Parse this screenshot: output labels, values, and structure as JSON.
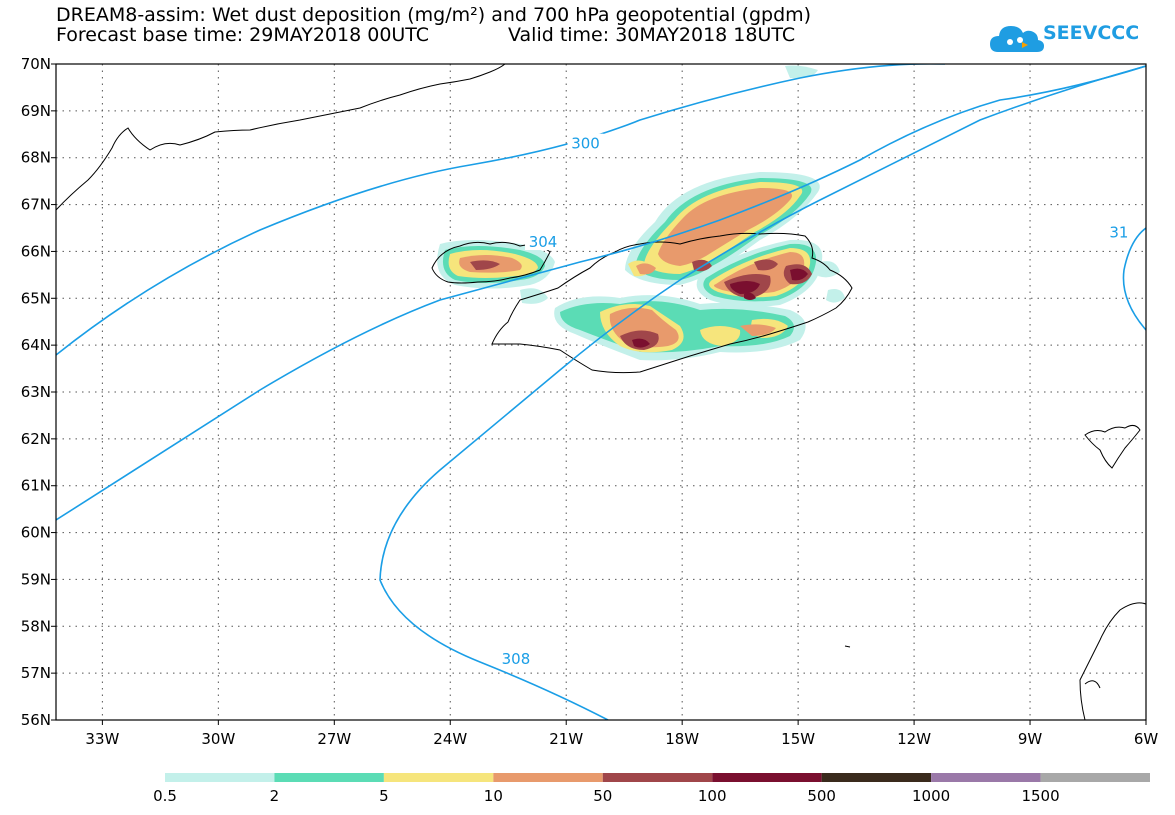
{
  "header": {
    "title_line1": "DREAM8-assim: Wet dust deposition (mg/m²) and 700 hPa geopotential (gpdm)",
    "title_line2": "Forecast base time: 29MAY2018 00UTC",
    "valid_time": "Valid time: 30MAY2018 18UTC",
    "logo_text": "SEEVCCC",
    "logo_icon": "cloud-icon",
    "logo_color": "#1f9de2"
  },
  "map": {
    "lon_range": [
      -34.2,
      -6
    ],
    "lat_range": [
      56,
      70
    ],
    "lon_ticks": [
      -33,
      -30,
      -27,
      -24,
      -21,
      -18,
      -15,
      -12,
      -9,
      -6
    ],
    "lon_tick_labels": [
      "33W",
      "30W",
      "27W",
      "24W",
      "21W",
      "18W",
      "15W",
      "12W",
      "9W",
      "6W"
    ],
    "lat_ticks": [
      56,
      57,
      58,
      59,
      60,
      61,
      62,
      63,
      64,
      65,
      66,
      67,
      68,
      69,
      70
    ],
    "lat_tick_labels": [
      "56N",
      "57N",
      "58N",
      "59N",
      "60N",
      "61N",
      "62N",
      "63N",
      "64N",
      "65N",
      "66N",
      "67N",
      "68N",
      "69N",
      "70N"
    ],
    "grid": "dotted",
    "contour_color": "#1a9ee6",
    "contour_labels": [
      {
        "text": "300",
        "lon": -20.5,
        "lat": 68.3
      },
      {
        "text": "304",
        "lon": -21.6,
        "lat": 66.2
      },
      {
        "text": "308",
        "lon": -22.3,
        "lat": 57.3
      },
      {
        "text": "31",
        "lon": -6.7,
        "lat": 66.4
      }
    ]
  },
  "legend": {
    "colors": [
      "#c3f0ea",
      "#5bdcb5",
      "#f6e57c",
      "#e89a6c",
      "#a0464a",
      "#7a0f2f",
      "#3a2a1c",
      "#9a78a8",
      "#a8a8a8"
    ],
    "labels": [
      "0.5",
      "2",
      "5",
      "10",
      "50",
      "100",
      "500",
      "1000",
      "1500"
    ]
  }
}
